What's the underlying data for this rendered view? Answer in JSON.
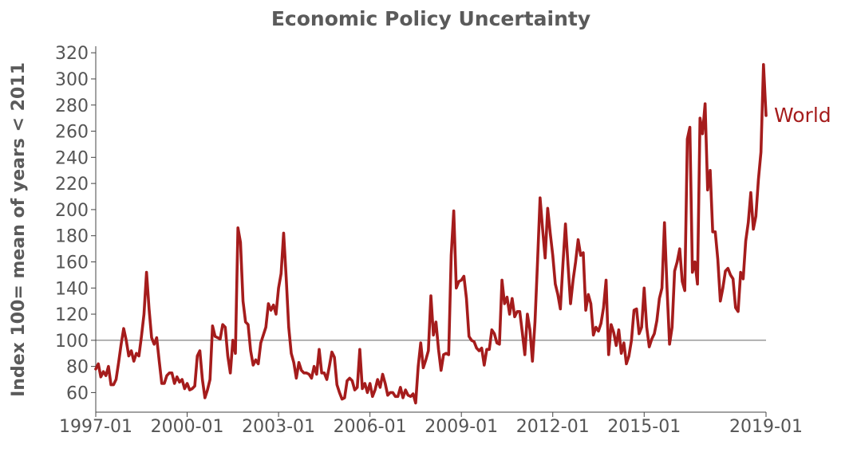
{
  "chart_data": {
    "type": "line",
    "title": "Economic Policy Uncertainty",
    "xlabel": "",
    "ylabel": "Index 100= mean of years < 2011",
    "xlim": [
      "1997-01",
      "2019-01"
    ],
    "ylim": [
      45,
      325
    ],
    "x_ticks": [
      "1997-01",
      "2000-01",
      "2003-01",
      "2006-01",
      "2009-01",
      "2012-01",
      "2015-01",
      "2019-01"
    ],
    "y_ticks": [
      60,
      80,
      100,
      120,
      140,
      160,
      180,
      200,
      220,
      240,
      260,
      280,
      300,
      320
    ],
    "reference_line": 100,
    "grid": false,
    "series": [
      {
        "name": "World",
        "color": "#a51c1c",
        "points": [
          [
            "1997-01",
            78
          ],
          [
            "1997-02",
            82
          ],
          [
            "1997-03",
            72
          ],
          [
            "1997-04",
            76
          ],
          [
            "1997-05",
            73
          ],
          [
            "1997-06",
            80
          ],
          [
            "1997-07",
            66
          ],
          [
            "1997-08",
            66
          ],
          [
            "1997-09",
            70
          ],
          [
            "1997-10",
            83
          ],
          [
            "1997-11",
            97
          ],
          [
            "1997-12",
            109
          ],
          [
            "1998-01",
            100
          ],
          [
            "1998-02",
            88
          ],
          [
            "1998-03",
            92
          ],
          [
            "1998-04",
            84
          ],
          [
            "1998-05",
            90
          ],
          [
            "1998-06",
            88
          ],
          [
            "1998-07",
            103
          ],
          [
            "1998-08",
            120
          ],
          [
            "1998-09",
            152
          ],
          [
            "1998-10",
            124
          ],
          [
            "1998-11",
            102
          ],
          [
            "1998-12",
            97
          ],
          [
            "1999-01",
            102
          ],
          [
            "1999-02",
            84
          ],
          [
            "1999-03",
            67
          ],
          [
            "1999-04",
            67
          ],
          [
            "1999-05",
            73
          ],
          [
            "1999-06",
            75
          ],
          [
            "1999-07",
            75
          ],
          [
            "1999-08",
            67
          ],
          [
            "1999-09",
            72
          ],
          [
            "1999-10",
            68
          ],
          [
            "1999-11",
            70
          ],
          [
            "1999-12",
            63
          ],
          [
            "2000-01",
            67
          ],
          [
            "2000-02",
            62
          ],
          [
            "2000-03",
            63
          ],
          [
            "2000-04",
            65
          ],
          [
            "2000-05",
            88
          ],
          [
            "2000-06",
            92
          ],
          [
            "2000-07",
            70
          ],
          [
            "2000-08",
            56
          ],
          [
            "2000-09",
            62
          ],
          [
            "2000-10",
            70
          ],
          [
            "2000-11",
            111
          ],
          [
            "2000-12",
            103
          ],
          [
            "2001-01",
            102
          ],
          [
            "2001-02",
            101
          ],
          [
            "2001-03",
            112
          ],
          [
            "2001-04",
            110
          ],
          [
            "2001-05",
            88
          ],
          [
            "2001-06",
            75
          ],
          [
            "2001-07",
            100
          ],
          [
            "2001-08",
            90
          ],
          [
            "2001-09",
            186
          ],
          [
            "2001-10",
            175
          ],
          [
            "2001-11",
            130
          ],
          [
            "2001-12",
            114
          ],
          [
            "2002-01",
            112
          ],
          [
            "2002-02",
            92
          ],
          [
            "2002-03",
            81
          ],
          [
            "2002-04",
            85
          ],
          [
            "2002-05",
            82
          ],
          [
            "2002-06",
            98
          ],
          [
            "2002-07",
            104
          ],
          [
            "2002-08",
            110
          ],
          [
            "2002-09",
            128
          ],
          [
            "2002-10",
            123
          ],
          [
            "2002-11",
            127
          ],
          [
            "2002-12",
            120
          ],
          [
            "2003-01",
            140
          ],
          [
            "2003-02",
            151
          ],
          [
            "2003-03",
            182
          ],
          [
            "2003-04",
            148
          ],
          [
            "2003-05",
            110
          ],
          [
            "2003-06",
            90
          ],
          [
            "2003-07",
            83
          ],
          [
            "2003-08",
            71
          ],
          [
            "2003-09",
            83
          ],
          [
            "2003-10",
            77
          ],
          [
            "2003-11",
            75
          ],
          [
            "2003-12",
            75
          ],
          [
            "2004-01",
            74
          ],
          [
            "2004-02",
            71
          ],
          [
            "2004-03",
            80
          ],
          [
            "2004-04",
            74
          ],
          [
            "2004-05",
            93
          ],
          [
            "2004-06",
            75
          ],
          [
            "2004-07",
            75
          ],
          [
            "2004-08",
            70
          ],
          [
            "2004-09",
            80
          ],
          [
            "2004-10",
            91
          ],
          [
            "2004-11",
            87
          ],
          [
            "2004-12",
            66
          ],
          [
            "2005-01",
            60
          ],
          [
            "2005-02",
            55
          ],
          [
            "2005-03",
            56
          ],
          [
            "2005-04",
            69
          ],
          [
            "2005-05",
            71
          ],
          [
            "2005-06",
            69
          ],
          [
            "2005-07",
            62
          ],
          [
            "2005-08",
            64
          ],
          [
            "2005-09",
            93
          ],
          [
            "2005-10",
            63
          ],
          [
            "2005-11",
            67
          ],
          [
            "2005-12",
            60
          ],
          [
            "2006-01",
            67
          ],
          [
            "2006-02",
            57
          ],
          [
            "2006-03",
            62
          ],
          [
            "2006-04",
            70
          ],
          [
            "2006-05",
            64
          ],
          [
            "2006-06",
            74
          ],
          [
            "2006-07",
            67
          ],
          [
            "2006-08",
            58
          ],
          [
            "2006-09",
            60
          ],
          [
            "2006-10",
            60
          ],
          [
            "2006-11",
            57
          ],
          [
            "2006-12",
            57
          ],
          [
            "2007-01",
            64
          ],
          [
            "2007-02",
            56
          ],
          [
            "2007-03",
            62
          ],
          [
            "2007-04",
            58
          ],
          [
            "2007-05",
            57
          ],
          [
            "2007-06",
            59
          ],
          [
            "2007-07",
            52
          ],
          [
            "2007-08",
            80
          ],
          [
            "2007-09",
            98
          ],
          [
            "2007-10",
            79
          ],
          [
            "2007-11",
            85
          ],
          [
            "2007-12",
            92
          ],
          [
            "2008-01",
            134
          ],
          [
            "2008-02",
            104
          ],
          [
            "2008-03",
            114
          ],
          [
            "2008-04",
            93
          ],
          [
            "2008-05",
            77
          ],
          [
            "2008-06",
            89
          ],
          [
            "2008-07",
            90
          ],
          [
            "2008-08",
            89
          ],
          [
            "2008-09",
            165
          ],
          [
            "2008-10",
            199
          ],
          [
            "2008-11",
            140
          ],
          [
            "2008-12",
            145
          ],
          [
            "2009-01",
            146
          ],
          [
            "2009-02",
            149
          ],
          [
            "2009-03",
            132
          ],
          [
            "2009-04",
            103
          ],
          [
            "2009-05",
            100
          ],
          [
            "2009-06",
            99
          ],
          [
            "2009-07",
            94
          ],
          [
            "2009-08",
            92
          ],
          [
            "2009-09",
            94
          ],
          [
            "2009-10",
            81
          ],
          [
            "2009-11",
            93
          ],
          [
            "2009-12",
            93
          ],
          [
            "2010-01",
            108
          ],
          [
            "2010-02",
            105
          ],
          [
            "2010-03",
            98
          ],
          [
            "2010-04",
            97
          ],
          [
            "2010-05",
            146
          ],
          [
            "2010-06",
            128
          ],
          [
            "2010-07",
            133
          ],
          [
            "2010-08",
            120
          ],
          [
            "2010-09",
            132
          ],
          [
            "2010-10",
            118
          ],
          [
            "2010-11",
            122
          ],
          [
            "2010-12",
            122
          ],
          [
            "2011-01",
            106
          ],
          [
            "2011-02",
            89
          ],
          [
            "2011-03",
            120
          ],
          [
            "2011-04",
            108
          ],
          [
            "2011-05",
            84
          ],
          [
            "2011-06",
            114
          ],
          [
            "2011-07",
            160
          ],
          [
            "2011-08",
            209
          ],
          [
            "2011-09",
            185
          ],
          [
            "2011-10",
            163
          ],
          [
            "2011-11",
            201
          ],
          [
            "2011-12",
            182
          ],
          [
            "2012-01",
            165
          ],
          [
            "2012-02",
            143
          ],
          [
            "2012-03",
            135
          ],
          [
            "2012-04",
            124
          ],
          [
            "2012-05",
            158
          ],
          [
            "2012-06",
            189
          ],
          [
            "2012-07",
            158
          ],
          [
            "2012-08",
            128
          ],
          [
            "2012-09",
            146
          ],
          [
            "2012-10",
            160
          ],
          [
            "2012-11",
            177
          ],
          [
            "2012-12",
            165
          ],
          [
            "2013-01",
            167
          ],
          [
            "2013-02",
            123
          ],
          [
            "2013-03",
            135
          ],
          [
            "2013-04",
            128
          ],
          [
            "2013-05",
            104
          ],
          [
            "2013-06",
            110
          ],
          [
            "2013-07",
            107
          ],
          [
            "2013-08",
            113
          ],
          [
            "2013-09",
            125
          ],
          [
            "2013-10",
            146
          ],
          [
            "2013-11",
            89
          ],
          [
            "2013-12",
            112
          ],
          [
            "2014-01",
            106
          ],
          [
            "2014-02",
            96
          ],
          [
            "2014-03",
            108
          ],
          [
            "2014-04",
            90
          ],
          [
            "2014-05",
            98
          ],
          [
            "2014-06",
            82
          ],
          [
            "2014-07",
            88
          ],
          [
            "2014-08",
            100
          ],
          [
            "2014-09",
            123
          ],
          [
            "2014-10",
            124
          ],
          [
            "2014-11",
            105
          ],
          [
            "2014-12",
            110
          ],
          [
            "2015-01",
            140
          ],
          [
            "2015-02",
            110
          ],
          [
            "2015-03",
            95
          ],
          [
            "2015-04",
            101
          ],
          [
            "2015-05",
            105
          ],
          [
            "2015-06",
            115
          ],
          [
            "2015-07",
            132
          ],
          [
            "2015-08",
            140
          ],
          [
            "2015-09",
            190
          ],
          [
            "2015-10",
            140
          ],
          [
            "2015-11",
            97
          ],
          [
            "2015-12",
            110
          ],
          [
            "2016-01",
            153
          ],
          [
            "2016-02",
            160
          ],
          [
            "2016-03",
            170
          ],
          [
            "2016-04",
            145
          ],
          [
            "2016-05",
            138
          ],
          [
            "2016-06",
            254
          ],
          [
            "2016-07",
            263
          ],
          [
            "2016-08",
            152
          ],
          [
            "2016-09",
            160
          ],
          [
            "2016-10",
            143
          ],
          [
            "2016-11",
            270
          ],
          [
            "2016-12",
            258
          ],
          [
            "2017-01",
            281
          ],
          [
            "2017-02",
            215
          ],
          [
            "2017-03",
            230
          ],
          [
            "2017-04",
            183
          ],
          [
            "2017-05",
            183
          ],
          [
            "2017-06",
            162
          ],
          [
            "2017-07",
            130
          ],
          [
            "2017-08",
            140
          ],
          [
            "2017-09",
            153
          ],
          [
            "2017-10",
            155
          ],
          [
            "2017-11",
            150
          ],
          [
            "2017-12",
            147
          ],
          [
            "2018-01",
            125
          ],
          [
            "2018-02",
            122
          ],
          [
            "2018-03",
            152
          ],
          [
            "2018-04",
            147
          ],
          [
            "2018-05",
            176
          ],
          [
            "2018-06",
            190
          ],
          [
            "2018-07",
            213
          ],
          [
            "2018-08",
            185
          ],
          [
            "2018-09",
            195
          ],
          [
            "2018-10",
            223
          ],
          [
            "2018-11",
            244
          ],
          [
            "2018-12",
            311
          ],
          [
            "2019-01",
            272
          ]
        ]
      }
    ]
  }
}
